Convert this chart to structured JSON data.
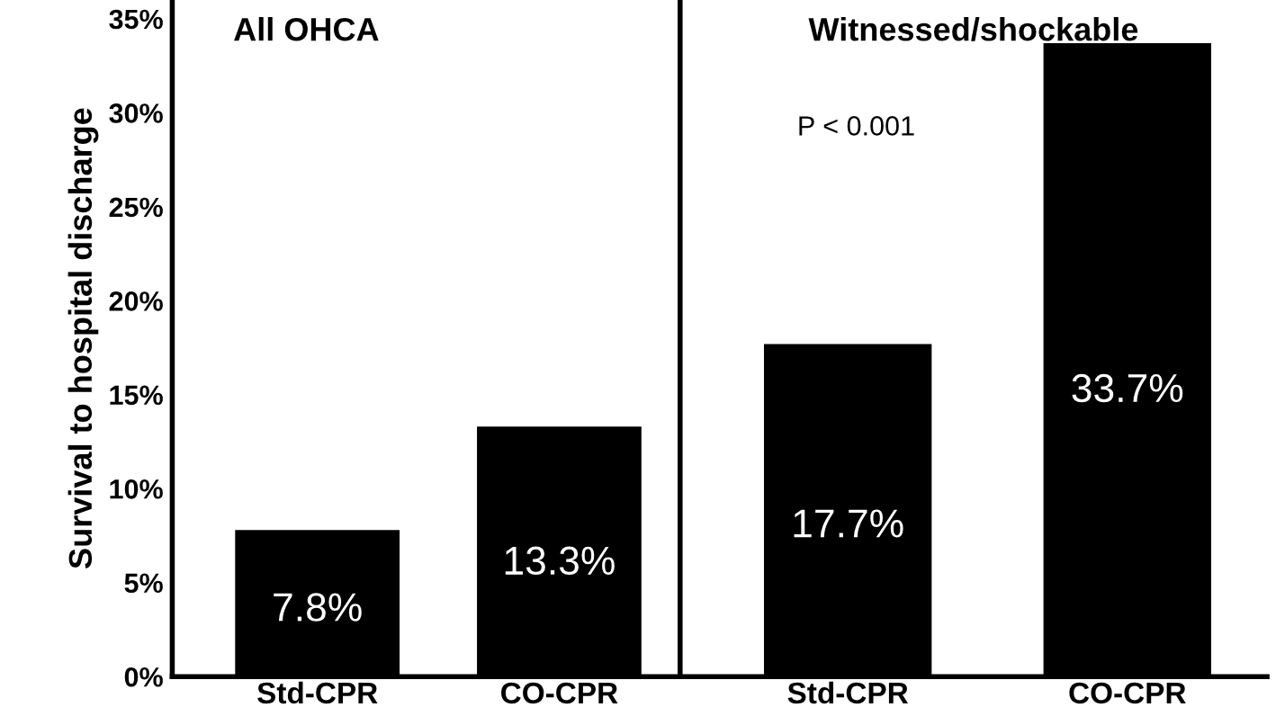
{
  "chart_data": [
    {
      "type": "bar",
      "title": "All OHCA",
      "ylabel": "Survival to hospital discharge",
      "categories": [
        "Std-CPR",
        "CO-CPR"
      ],
      "values": [
        7.8,
        13.3
      ],
      "color": "#000000",
      "value_labels": [
        "7.8%",
        "13.3%"
      ],
      "ylim": [
        0,
        36
      ],
      "yticks": [
        {
          "value": 0,
          "label": "0%"
        },
        {
          "value": 5,
          "label": "5%"
        },
        {
          "value": 10,
          "label": "10%"
        },
        {
          "value": 15,
          "label": "15%"
        },
        {
          "value": 20,
          "label": "20%"
        },
        {
          "value": 25,
          "label": "25%"
        },
        {
          "value": 30,
          "label": "30%"
        },
        {
          "value": 35,
          "label": "35%"
        }
      ],
      "grid": false,
      "legend": false
    },
    {
      "type": "bar",
      "title": "Witnessed/shockable",
      "categories": [
        "Std-CPR",
        "CO-CPR"
      ],
      "values": [
        17.7,
        33.7
      ],
      "color": "#000000",
      "value_labels": [
        "17.7%",
        "33.7%"
      ],
      "ylim": [
        0,
        36
      ],
      "tick_labels": "x",
      "annotations": [
        "P < 0.001"
      ],
      "grid": false,
      "legend": false
    }
  ]
}
